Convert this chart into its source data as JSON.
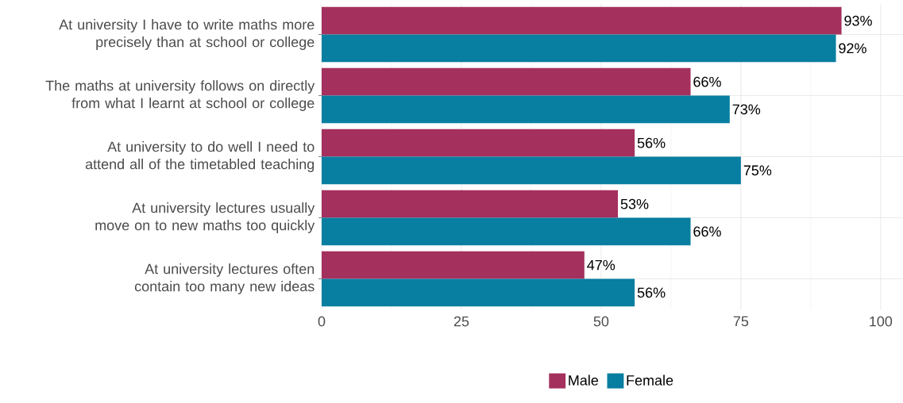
{
  "chart_data": {
    "type": "bar",
    "orientation": "horizontal",
    "categories": [
      "At university I have to write maths more precisely than at school or college",
      "The maths at university follows on directly from what I learnt at school or college",
      "At university to do well I need to attend all of the timetabled teaching",
      "At university lectures usually move on to new maths too quickly",
      "At university lectures often contain too many new ideas"
    ],
    "series": [
      {
        "name": "Male",
        "color": "#a4305e",
        "values": [
          93,
          66,
          56,
          53,
          47
        ],
        "value_labels": [
          "93%",
          "66%",
          "56%",
          "53%",
          "47%"
        ]
      },
      {
        "name": "Female",
        "color": "#087ea0",
        "values": [
          92,
          73,
          75,
          66,
          56
        ],
        "value_labels": [
          "92%",
          "73%",
          "75%",
          "66%",
          "56%"
        ]
      }
    ],
    "xlim": [
      0,
      104
    ],
    "xticks": [
      0,
      25,
      50,
      75,
      100
    ],
    "grid": true,
    "legend": "bottom"
  }
}
